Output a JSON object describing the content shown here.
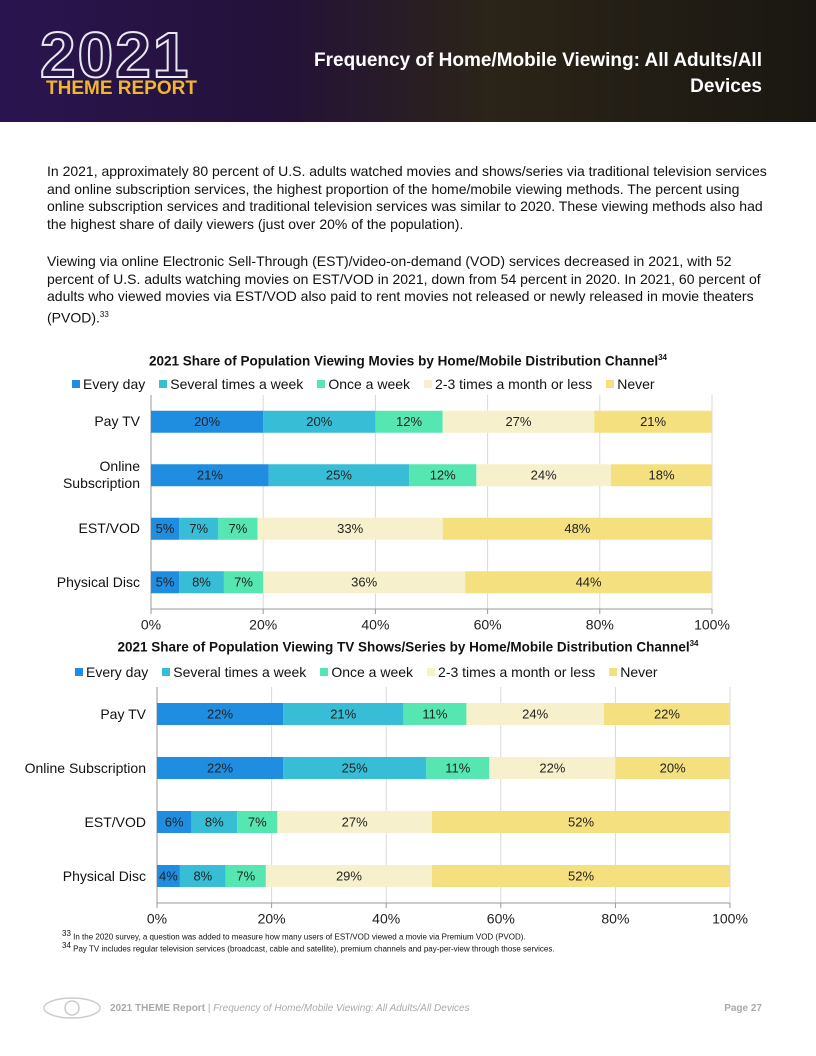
{
  "header": {
    "logo_year": "2021",
    "logo_sub": "THEME REPORT",
    "title": "Frequency of Home/Mobile Viewing: All Adults/All Devices"
  },
  "paragraphs": [
    {
      "text": "In 2021, approximately 80 percent of U.S. adults watched movies and shows/series via traditional television services and online subscription services, the highest proportion of the home/mobile viewing methods. The percent using online subscription services and traditional television services was similar to 2020.  These viewing methods also had the highest share of daily viewers (just over 20% of the population)."
    },
    {
      "text": "Viewing via online Electronic Sell-Through (EST)/video-on-demand (VOD) services decreased in 2021, with 52 percent of U.S. adults watching movies on EST/VOD in 2021, down from 54 percent in 2020. In 2021, 60 percent of adults who viewed movies via EST/VOD also paid to rent movies not released or newly released in movie theaters (PVOD).",
      "ref": "33"
    }
  ],
  "chart_data": [
    {
      "type": "stacked_bar_horizontal",
      "title": "2021 Share of Population Viewing Movies by Home/Mobile Distribution Channel",
      "title_ref": "34",
      "categories": [
        "Pay TV",
        "Online Subscription",
        "EST/VOD",
        "Physical Disc"
      ],
      "series": [
        {
          "name": "Every day",
          "color": "#1f8de0",
          "values": [
            20,
            21,
            5,
            5
          ],
          "value_labels": [
            "20%",
            "21%",
            "5%",
            "5%"
          ]
        },
        {
          "name": "Several times a week",
          "color": "#38bdd6",
          "values": [
            20,
            25,
            7,
            8
          ],
          "value_labels": [
            "20%",
            "25%",
            "7%",
            "8%"
          ]
        },
        {
          "name": "Once a week",
          "color": "#55e6b2",
          "values": [
            12,
            12,
            7,
            7
          ],
          "value_labels": [
            "12%",
            "12%",
            "7%",
            "7%"
          ]
        },
        {
          "name": "2-3 times a month or less",
          "color": "#f6f1cc",
          "values": [
            27,
            24,
            33,
            36
          ],
          "value_labels": [
            "27%",
            "24%",
            "33%",
            "36%"
          ]
        },
        {
          "name": "Never",
          "color": "#f5e07f",
          "values": [
            21,
            18,
            48,
            44
          ],
          "value_labels": [
            "21%",
            "18%",
            "48%",
            "44%"
          ]
        }
      ],
      "xlim": [
        0,
        100
      ],
      "xticks": [
        {
          "value": 0,
          "label": "0%"
        },
        {
          "value": 20,
          "label": "20%"
        },
        {
          "value": 40,
          "label": "40%"
        },
        {
          "value": 60,
          "label": "60%"
        },
        {
          "value": 80,
          "label": "80%"
        },
        {
          "value": 100,
          "label": "100%"
        }
      ],
      "grid": true
    },
    {
      "type": "stacked_bar_horizontal",
      "title": "2021 Share of Population Viewing TV Shows/Series by Home/Mobile Distribution Channel",
      "title_ref": "34",
      "categories": [
        "Pay TV",
        "Online Subscription",
        "EST/VOD",
        "Physical Disc"
      ],
      "series": [
        {
          "name": "Every day",
          "color": "#1f8de0",
          "values": [
            22,
            22,
            6,
            4
          ],
          "value_labels": [
            "22%",
            "22%",
            "6%",
            "4%"
          ]
        },
        {
          "name": "Several times a week",
          "color": "#38bdd6",
          "values": [
            21,
            25,
            8,
            8
          ],
          "value_labels": [
            "21%",
            "25%",
            "8%",
            "8%"
          ]
        },
        {
          "name": "Once a week",
          "color": "#55e6b2",
          "values": [
            11,
            11,
            7,
            7
          ],
          "value_labels": [
            "11%",
            "11%",
            "7%",
            "7%"
          ]
        },
        {
          "name": "2-3 times a month or less",
          "color": "#f6f1cc",
          "values": [
            24,
            22,
            27,
            29
          ],
          "value_labels": [
            "24%",
            "22%",
            "27%",
            "29%"
          ]
        },
        {
          "name": "Never",
          "color": "#f5e07f",
          "values": [
            22,
            20,
            52,
            52
          ],
          "value_labels": [
            "22%",
            "20%",
            "52%",
            "52%"
          ]
        }
      ],
      "xlim": [
        0,
        100
      ],
      "xticks": [
        {
          "value": 0,
          "label": "0%"
        },
        {
          "value": 20,
          "label": "20%"
        },
        {
          "value": 40,
          "label": "40%"
        },
        {
          "value": 60,
          "label": "60%"
        },
        {
          "value": 80,
          "label": "80%"
        },
        {
          "value": 100,
          "label": "100%"
        }
      ],
      "grid": true
    }
  ],
  "footnotes": [
    {
      "mark": "33",
      "text": "In the 2020 survey, a question was added to measure how many users of EST/VOD viewed a movie via Premium VOD (PVOD)."
    },
    {
      "mark": "34",
      "text": "Pay TV includes regular television services (broadcast, cable and satellite), premium channels and pay-per-view through those services."
    }
  ],
  "footer": {
    "report": "2021 THEME Report",
    "separator": "|",
    "section": "Frequency of Home/Mobile Viewing: All Adults/All Devices",
    "page": "Page 27"
  }
}
